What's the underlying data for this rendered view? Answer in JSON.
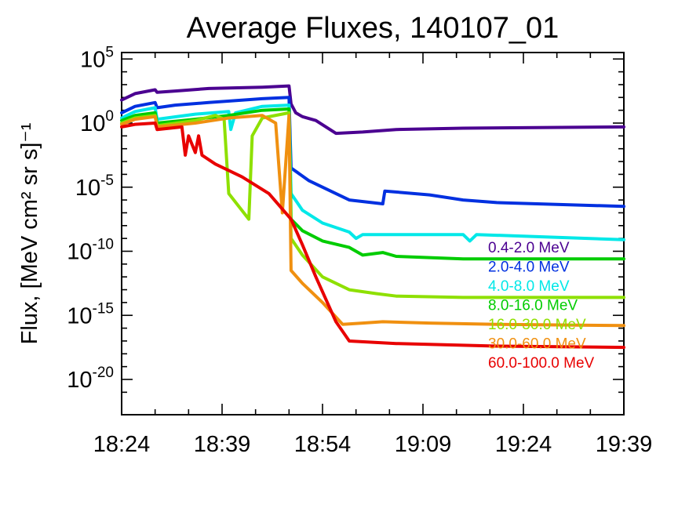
{
  "chart_data": {
    "type": "line",
    "title": "Average Fluxes, 140107_01",
    "xlabel": "",
    "ylabel": "Flux, [MeV cm² sr s]⁻¹",
    "y_scale": "log",
    "ylim_exponent": [
      -22,
      5.5
    ],
    "y_ticks": [
      {
        "base": "10",
        "exp": "5",
        "value_exp": 5
      },
      {
        "base": "10",
        "exp": "0",
        "value_exp": 0
      },
      {
        "base": "10",
        "exp": "-5",
        "value_exp": -5
      },
      {
        "base": "10",
        "exp": "-10",
        "value_exp": -10
      },
      {
        "base": "10",
        "exp": "-15",
        "value_exp": -15
      },
      {
        "base": "10",
        "exp": "-20",
        "value_exp": -20
      }
    ],
    "x_ticks": [
      "18:24",
      "18:39",
      "18:54",
      "19:09",
      "19:24",
      "19:39"
    ],
    "xlim": [
      "18:24",
      "19:39"
    ],
    "legend_placement": "right",
    "series": [
      {
        "name": "0.4-2.0 MeV",
        "color": "#4b0091",
        "points": [
          [
            "18:24",
            1.8
          ],
          [
            "18:26",
            2.3
          ],
          [
            "18:29",
            2.6
          ],
          [
            "18:29.3",
            2.4
          ],
          [
            "18:32",
            2.5
          ],
          [
            "18:37",
            2.7
          ],
          [
            "18:45",
            2.8
          ],
          [
            "18:49",
            2.9
          ],
          [
            "18:49.3",
            1.5
          ],
          [
            "18:50",
            0.8
          ],
          [
            "18:51",
            0.5
          ],
          [
            "18:53",
            0.2
          ],
          [
            "18:56",
            -0.8
          ],
          [
            "19:00",
            -0.7
          ],
          [
            "19:05",
            -0.5
          ],
          [
            "19:15",
            -0.4
          ],
          [
            "19:39",
            -0.3
          ]
        ]
      },
      {
        "name": "2.0-4.0 MeV",
        "color": "#0030e0",
        "points": [
          [
            "18:24",
            0.8
          ],
          [
            "18:26",
            1.3
          ],
          [
            "18:29",
            1.6
          ],
          [
            "18:29.3",
            1.2
          ],
          [
            "18:32",
            1.4
          ],
          [
            "18:37",
            1.6
          ],
          [
            "18:45",
            1.9
          ],
          [
            "18:49",
            2.0
          ],
          [
            "18:49.3",
            -3.5
          ],
          [
            "18:52",
            -4.5
          ],
          [
            "18:56",
            -5.5
          ],
          [
            "18:58",
            -6.0
          ],
          [
            "19:03",
            -6.3
          ],
          [
            "19:03.3",
            -5.3
          ],
          [
            "19:10",
            -5.6
          ],
          [
            "19:15",
            -6.0
          ],
          [
            "19:20",
            -6.2
          ],
          [
            "19:39",
            -6.5
          ]
        ]
      },
      {
        "name": "4.0-8.0 MeV",
        "color": "#00e8e8",
        "points": [
          [
            "18:24",
            0.4
          ],
          [
            "18:26",
            0.9
          ],
          [
            "18:29",
            1.2
          ],
          [
            "18:29.3",
            0.3
          ],
          [
            "18:35",
            0.7
          ],
          [
            "18:40",
            0.9
          ],
          [
            "18:40.3",
            -0.5
          ],
          [
            "18:41",
            0.8
          ],
          [
            "18:45",
            1.3
          ],
          [
            "18:49",
            1.4
          ],
          [
            "18:49.3",
            -5.5
          ],
          [
            "18:51",
            -6.8
          ],
          [
            "18:54",
            -7.8
          ],
          [
            "18:58",
            -8.5
          ],
          [
            "18:59",
            -9.0
          ],
          [
            "19:00",
            -8.7
          ],
          [
            "19:05",
            -8.7
          ],
          [
            "19:15",
            -8.7
          ],
          [
            "19:16",
            -9.2
          ],
          [
            "19:17",
            -8.7
          ],
          [
            "19:39",
            -9.1
          ]
        ]
      },
      {
        "name": "8.0-16.0 MeV",
        "color": "#00cc00",
        "points": [
          [
            "18:24",
            0.2
          ],
          [
            "18:26",
            0.6
          ],
          [
            "18:29",
            0.8
          ],
          [
            "18:29.3",
            0.0
          ],
          [
            "18:35",
            0.3
          ],
          [
            "18:40",
            0.6
          ],
          [
            "18:45",
            1.0
          ],
          [
            "18:49",
            1.1
          ],
          [
            "18:49.3",
            -7.5
          ],
          [
            "18:51",
            -8.4
          ],
          [
            "18:54",
            -9.2
          ],
          [
            "18:58",
            -9.7
          ],
          [
            "19:00",
            -10.3
          ],
          [
            "19:03",
            -10.1
          ],
          [
            "19:05",
            -10.4
          ],
          [
            "19:15",
            -10.6
          ],
          [
            "19:39",
            -10.6
          ]
        ]
      },
      {
        "name": "16.0-30.0 MeV",
        "color": "#8ee000",
        "points": [
          [
            "18:24",
            0.0
          ],
          [
            "18:26",
            0.4
          ],
          [
            "18:29",
            0.6
          ],
          [
            "18:29.3",
            -0.2
          ],
          [
            "18:35",
            0.2
          ],
          [
            "18:38",
            0.6
          ],
          [
            "18:39.3",
            0.3
          ],
          [
            "18:40",
            -5.5
          ],
          [
            "18:43",
            -7.5
          ],
          [
            "18:43.5",
            -1.0
          ],
          [
            "18:45",
            0.4
          ],
          [
            "18:49",
            0.8
          ],
          [
            "18:49.3",
            -9.0
          ],
          [
            "18:51",
            -10.3
          ],
          [
            "18:54",
            -12.0
          ],
          [
            "18:58",
            -13.0
          ],
          [
            "19:02",
            -13.3
          ],
          [
            "19:05",
            -13.5
          ],
          [
            "19:15",
            -13.6
          ],
          [
            "19:39",
            -13.6
          ]
        ]
      },
      {
        "name": "30.0-60.0 MeV",
        "color": "#f09010",
        "points": [
          [
            "18:24",
            -0.1
          ],
          [
            "18:26",
            0.3
          ],
          [
            "18:29",
            0.5
          ],
          [
            "18:29.3",
            -0.3
          ],
          [
            "18:35",
            0.0
          ],
          [
            "18:40",
            0.4
          ],
          [
            "18:45",
            0.6
          ],
          [
            "18:47",
            0.0
          ],
          [
            "18:48",
            -7.0
          ],
          [
            "18:49",
            0.6
          ],
          [
            "18:49.3",
            -11.5
          ],
          [
            "18:51",
            -12.5
          ],
          [
            "18:54",
            -14.0
          ],
          [
            "18:57",
            -15.7
          ],
          [
            "19:00",
            -15.6
          ],
          [
            "19:03",
            -15.5
          ],
          [
            "19:10",
            -15.6
          ],
          [
            "19:20",
            -15.7
          ],
          [
            "19:39",
            -15.8
          ]
        ]
      },
      {
        "name": "60.0-100.0 MeV",
        "color": "#e80000",
        "points": [
          [
            "18:24",
            -0.3
          ],
          [
            "18:26",
            -0.1
          ],
          [
            "18:29",
            0.0
          ],
          [
            "18:29.3",
            -0.5
          ],
          [
            "18:33",
            -0.3
          ],
          [
            "18:33.5",
            -2.5
          ],
          [
            "18:34",
            -1.0
          ],
          [
            "18:35",
            -2.3
          ],
          [
            "18:35.5",
            -1.0
          ],
          [
            "18:36",
            -2.5
          ],
          [
            "18:38",
            -3.2
          ],
          [
            "18:42",
            -4.2
          ],
          [
            "18:46",
            -5.5
          ],
          [
            "18:49.3",
            -7.5
          ],
          [
            "18:51",
            -9.5
          ],
          [
            "18:53",
            -12.0
          ],
          [
            "18:56",
            -15.5
          ],
          [
            "18:58",
            -17.0
          ],
          [
            "19:05",
            -17.2
          ],
          [
            "19:20",
            -17.4
          ],
          [
            "19:39",
            -17.5
          ]
        ]
      }
    ]
  }
}
